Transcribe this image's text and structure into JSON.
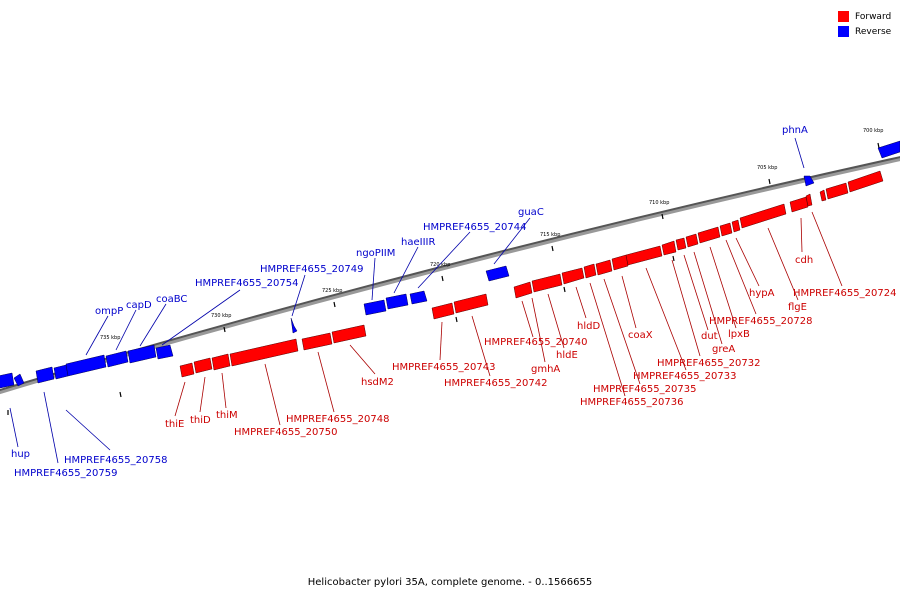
{
  "legend": {
    "forward": {
      "label": "Forward",
      "color": "#ff0000"
    },
    "reverse": {
      "label": "Reverse",
      "color": "#0000ff"
    }
  },
  "caption": "Helicobacter pylori 35A, complete genome. - 0..1566655",
  "ticks": [
    "735 kbp",
    "730 kbp",
    "725 kbp",
    "720 kbp",
    "715 kbp",
    "710 kbp",
    "705 kbp",
    "700 kbp"
  ],
  "reverse_labels": [
    "ompP",
    "capD",
    "coaBC",
    "HMPREF4655_20754",
    "HMPREF4655_20749",
    "ngoPIIM",
    "haeIIIR",
    "HMPREF4655_20744",
    "guaC",
    "phnA",
    "hup",
    "HMPREF4655_20759",
    "HMPREF4655_20758"
  ],
  "forward_labels": [
    "thiE",
    "thiD",
    "thiM",
    "HMPREF4655_20750",
    "HMPREF4655_20748",
    "hsdM2",
    "HMPREF4655_20743",
    "HMPREF4655_20742",
    "HMPREF4655_20740",
    "gmhA",
    "hldE",
    "hldD",
    "coaX",
    "HMPREF4655_20736",
    "HMPREF4655_20735",
    "HMPREF4655_20733",
    "HMPREF4655_20732",
    "dut",
    "greA",
    "lpxB",
    "HMPREF4655_20728",
    "hypA",
    "flgE",
    "cdh",
    "HMPREF4655_20724"
  ]
}
